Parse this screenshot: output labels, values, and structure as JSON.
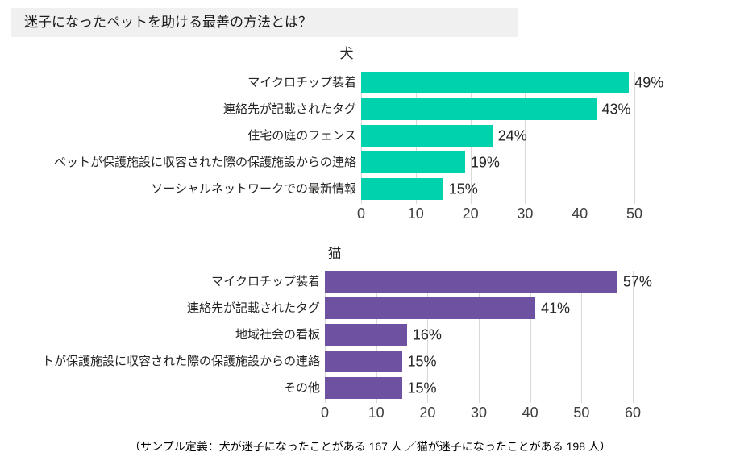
{
  "page_title": "迷子になったペットを助ける最善の方法とは？",
  "footer_note": "（サンプル定義：犬が迷子になったことがある 167 人 ／猫が迷子になったことがある 198 人）",
  "colors": {
    "dog_bar": "#00d2ad",
    "cat_bar": "#6e51a1",
    "title_bar_bg": "#f0f0f0",
    "gridline": "#d9d9d9",
    "text": "#252423",
    "axis_text": "#3d3d3d"
  },
  "chart_data": [
    {
      "type": "bar",
      "orientation": "horizontal",
      "title": "犬",
      "categories": [
        "マイクロチップ装着",
        "連絡先が記載されたタグ",
        "住宅の庭のフェンス",
        "ペットが保護施設に収容された際の保護施設からの連絡",
        "ソーシャルネットワークでの最新情報"
      ],
      "values": [
        49,
        43,
        24,
        19,
        15
      ],
      "data_labels": [
        "49%",
        "43%",
        "24%",
        "19%",
        "15%"
      ],
      "xticks": [
        0,
        10,
        20,
        30,
        40,
        50
      ],
      "xlim": [
        0,
        50
      ],
      "xlabel": "",
      "ylabel": "",
      "grid": true,
      "legend": false,
      "bar_color": "#00d2ad"
    },
    {
      "type": "bar",
      "orientation": "horizontal",
      "title": "猫",
      "categories": [
        "マイクロチップ装着",
        "連絡先が記載されたタグ",
        "地域社会の看板",
        "トが保護施設に収容された際の保護施設からの連絡",
        "その他"
      ],
      "values": [
        57,
        41,
        16,
        15,
        15
      ],
      "data_labels": [
        "57%",
        "41%",
        "16%",
        "15%",
        "15%"
      ],
      "xticks": [
        0,
        10,
        20,
        30,
        40,
        50,
        60
      ],
      "xlim": [
        0,
        60
      ],
      "xlabel": "",
      "ylabel": "",
      "grid": true,
      "legend": false,
      "bar_color": "#6e51a1"
    }
  ]
}
